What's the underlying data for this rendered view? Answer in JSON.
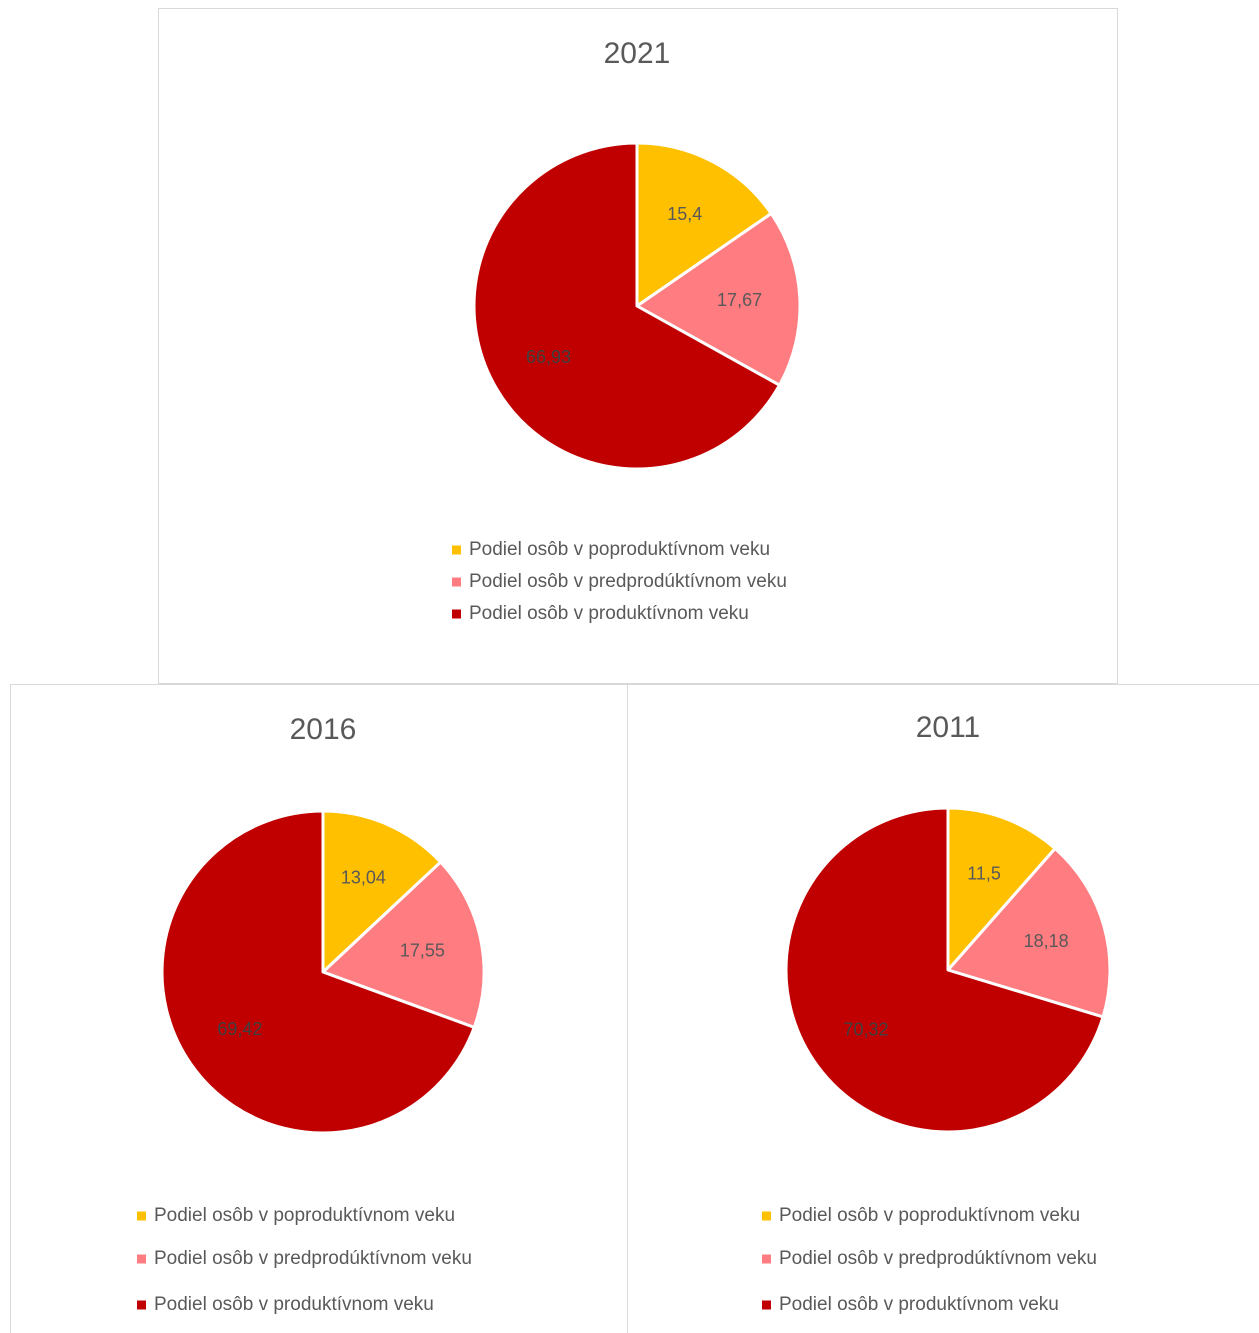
{
  "chart_data": [
    {
      "type": "pie",
      "title": "2021",
      "categories": [
        "Podiel osôb v poproduktívnom veku",
        "Podiel osôb v predprodúktívnom veku",
        "Podiel osôb v produktívnom veku"
      ],
      "values": [
        15.4,
        17.67,
        66.93
      ],
      "value_labels": [
        "15,4",
        "17,67",
        "66,93"
      ],
      "colors": [
        "#ffc000",
        "#ff7c80",
        "#c00000"
      ]
    },
    {
      "type": "pie",
      "title": "2016",
      "categories": [
        "Podiel osôb v poproduktívnom veku",
        "Podiel osôb v predprodúktívnom veku",
        "Podiel osôb v produktívnom veku"
      ],
      "values": [
        13.04,
        17.55,
        69.42
      ],
      "value_labels": [
        "13,04",
        "17,55",
        "69,42"
      ],
      "colors": [
        "#ffc000",
        "#ff7c80",
        "#c00000"
      ]
    },
    {
      "type": "pie",
      "title": "2011",
      "categories": [
        "Podiel osôb v poproduktívnom veku",
        "Podiel osôb v predprodúktívnom veku",
        "Podiel osôb v produktívnom veku"
      ],
      "values": [
        11.5,
        18.18,
        70.32
      ],
      "value_labels": [
        "11,5",
        "18,18",
        "70,32"
      ],
      "colors": [
        "#ffc000",
        "#ff7c80",
        "#c00000"
      ]
    }
  ]
}
